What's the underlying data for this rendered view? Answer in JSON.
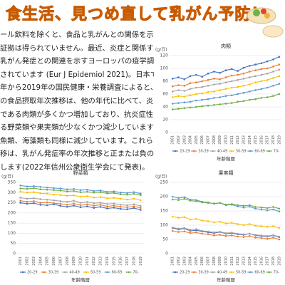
{
  "header": {
    "title": "食生活、見つめ直して乳がん予防！"
  },
  "paragraph": [
    "ール飲料を除くと、食品と乳がんとの関係を示",
    "証拠は得られていません。最近、炎症と関係す",
    "乳がん発症との関連を示すヨーロッパの疫学調",
    "されています (Eur J Epidemiol 2021)。日本で",
    "年から2019年の国民健康・栄養調査によると、",
    "の食品摂取年次推移は、他の年代に比べて、炎",
    "である肉類が多くかつ増加しており、抗炎症性",
    "る野菜類や果実類が少なくかつ減少しています",
    "魚類、海藻類も同様に減少しています。これら",
    "移は、乳がん発症率の年次推移と正または負の",
    "します(2022年信州公衆衛生学会にて発表)。"
  ],
  "chart_data": [
    {
      "type": "line",
      "title": "肉類",
      "y_label": "(g/日)",
      "x_label": "年齢階層",
      "categories": [
        "2001",
        "2002",
        "2003",
        "2004",
        "2005",
        "2006",
        "2007",
        "2008",
        "2009",
        "2010",
        "2011",
        "2012",
        "2013",
        "2014",
        "2015",
        "2016",
        "2017",
        "2018",
        "2019"
      ],
      "ylim": [
        0,
        120
      ],
      "yticks": [
        0,
        20,
        40,
        60,
        80,
        100,
        120
      ],
      "grid": true,
      "series": [
        {
          "name": "20-29",
          "color": "#4472c4",
          "values": [
            84,
            86,
            83,
            88,
            90,
            87,
            92,
            95,
            93,
            97,
            99,
            96,
            101,
            104,
            106,
            108,
            111,
            114,
            118
          ]
        },
        {
          "name": "30-39",
          "color": "#ed7d31",
          "values": [
            72,
            74,
            73,
            77,
            78,
            80,
            82,
            84,
            83,
            86,
            89,
            90,
            92,
            95,
            97,
            99,
            100,
            103,
            106
          ]
        },
        {
          "name": "40-49",
          "color": "#a5a5a5",
          "values": [
            64,
            66,
            65,
            68,
            70,
            71,
            73,
            75,
            76,
            78,
            80,
            82,
            84,
            86,
            88,
            90,
            92,
            95,
            98
          ]
        },
        {
          "name": "50-59",
          "color": "#ffc000",
          "values": [
            55,
            57,
            56,
            58,
            60,
            61,
            63,
            64,
            66,
            68,
            70,
            71,
            73,
            75,
            78,
            80,
            82,
            85,
            88
          ]
        },
        {
          "name": "60-69",
          "color": "#5b9bd5",
          "values": [
            45,
            46,
            47,
            48,
            50,
            51,
            52,
            54,
            55,
            57,
            58,
            60,
            62,
            64,
            66,
            68,
            70,
            73,
            76
          ]
        },
        {
          "name": "70-",
          "color": "#70ad47",
          "values": [
            36,
            37,
            38,
            39,
            40,
            41,
            42,
            43,
            44,
            45,
            46,
            48,
            49,
            51,
            52,
            54,
            55,
            57,
            60
          ]
        }
      ]
    },
    {
      "type": "line",
      "title": "野菜類",
      "y_label": "(g/日)",
      "x_label": "年齢階層",
      "categories": [
        "2001",
        "2002",
        "2003",
        "2004",
        "2005",
        "2006",
        "2007",
        "2008",
        "2009",
        "2010",
        "2011",
        "2012",
        "2013",
        "2014",
        "2015",
        "2016",
        "2017",
        "2018",
        "2019"
      ],
      "ylim": [
        0,
        350
      ],
      "yticks": [
        0,
        50,
        100,
        150,
        200,
        250,
        300,
        350
      ],
      "grid": true,
      "series": [
        {
          "name": "20-29",
          "color": "#4472c4",
          "values": [
            250,
            245,
            248,
            240,
            238,
            242,
            235,
            230,
            236,
            228,
            232,
            225,
            230,
            222,
            226,
            220,
            218,
            224,
            215
          ]
        },
        {
          "name": "30-39",
          "color": "#ed7d31",
          "values": [
            260,
            255,
            258,
            250,
            252,
            248,
            245,
            240,
            246,
            238,
            242,
            236,
            240,
            232,
            236,
            230,
            228,
            232,
            225
          ]
        },
        {
          "name": "40-49",
          "color": "#a5a5a5",
          "values": [
            275,
            270,
            272,
            268,
            265,
            262,
            258,
            255,
            260,
            250,
            254,
            248,
            250,
            244,
            246,
            240,
            238,
            242,
            235
          ]
        },
        {
          "name": "50-59",
          "color": "#ffc000",
          "values": [
            305,
            300,
            302,
            296,
            295,
            290,
            288,
            285,
            286,
            280,
            282,
            276,
            278,
            272,
            274,
            270,
            266,
            270,
            262
          ]
        },
        {
          "name": "60-69",
          "color": "#5b9bd5",
          "values": [
            335,
            330,
            332,
            328,
            325,
            322,
            320,
            316,
            318,
            312,
            314,
            308,
            310,
            304,
            306,
            300,
            298,
            302,
            295
          ]
        },
        {
          "name": "70-",
          "color": "#70ad47",
          "values": [
            320,
            318,
            322,
            316,
            314,
            312,
            310,
            306,
            308,
            302,
            304,
            300,
            302,
            296,
            298,
            292,
            290,
            294,
            288
          ]
        }
      ]
    },
    {
      "type": "line",
      "title": "果実類",
      "y_label": "(g/日)",
      "x_label": "年齢階層",
      "categories": [
        "2001",
        "2002",
        "2003",
        "2004",
        "2005",
        "2006",
        "2007",
        "2008",
        "2009",
        "2010",
        "2011",
        "2012",
        "2013",
        "2014",
        "2015",
        "2016",
        "2017",
        "2018",
        "2019"
      ],
      "ylim": [
        0,
        250
      ],
      "yticks": [
        0,
        50,
        100,
        150,
        200,
        250
      ],
      "grid": true,
      "series": [
        {
          "name": "20-29",
          "color": "#4472c4",
          "values": [
            90,
            85,
            88,
            80,
            82,
            78,
            75,
            72,
            76,
            70,
            72,
            68,
            66,
            70,
            64,
            62,
            60,
            64,
            58
          ]
        },
        {
          "name": "30-39",
          "color": "#ed7d31",
          "values": [
            80,
            76,
            78,
            72,
            74,
            70,
            68,
            64,
            66,
            62,
            64,
            60,
            58,
            62,
            56,
            55,
            52,
            56,
            50
          ]
        },
        {
          "name": "40-49",
          "color": "#a5a5a5",
          "values": [
            92,
            88,
            90,
            84,
            86,
            80,
            78,
            75,
            77,
            72,
            74,
            70,
            68,
            70,
            66,
            64,
            62,
            65,
            60
          ]
        },
        {
          "name": "50-59",
          "color": "#ffc000",
          "values": [
            130,
            126,
            128,
            120,
            122,
            116,
            114,
            110,
            112,
            106,
            108,
            104,
            100,
            104,
            98,
            96,
            94,
            96,
            90
          ]
        },
        {
          "name": "60-69",
          "color": "#5b9bd5",
          "values": [
            200,
            195,
            198,
            190,
            188,
            182,
            180,
            175,
            178,
            170,
            172,
            166,
            162,
            165,
            158,
            155,
            152,
            155,
            148
          ]
        },
        {
          "name": "70-",
          "color": "#70ad47",
          "values": [
            190,
            188,
            192,
            186,
            184,
            180,
            178,
            176,
            178,
            172,
            174,
            170,
            168,
            170,
            164,
            162,
            160,
            164,
            158
          ]
        }
      ]
    }
  ]
}
